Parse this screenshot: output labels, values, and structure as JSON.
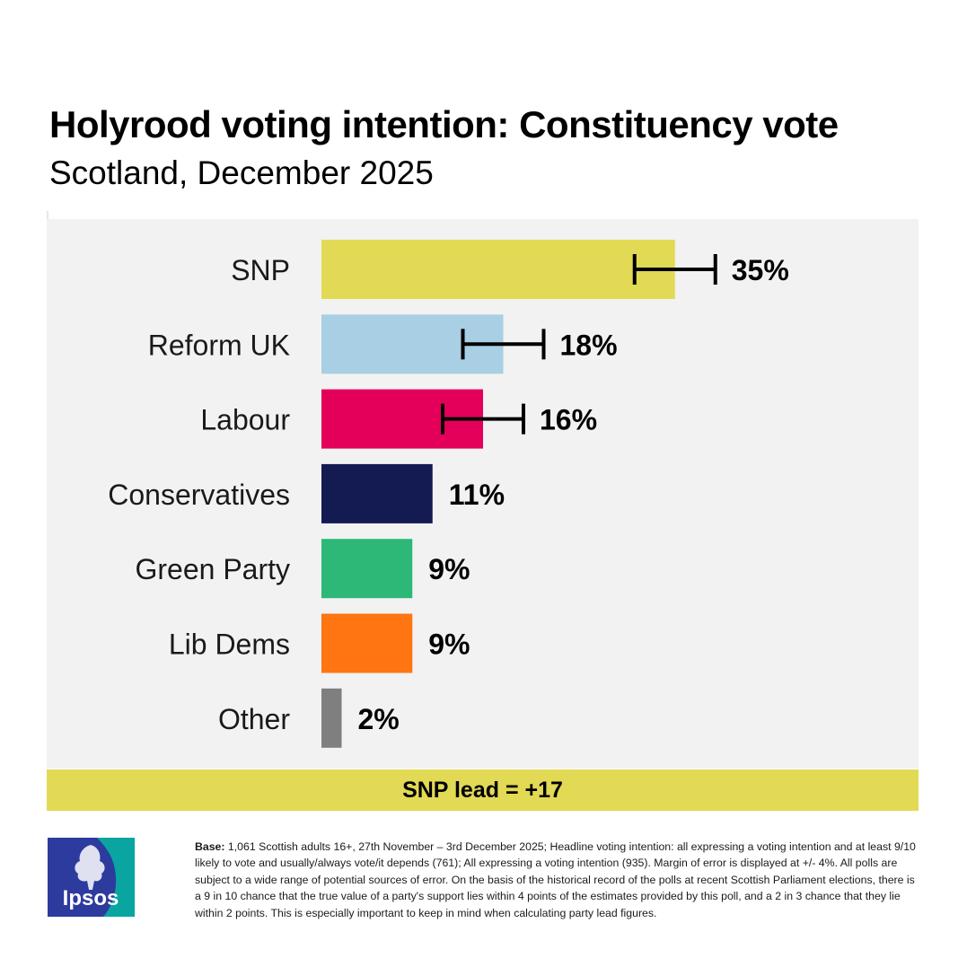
{
  "title": "Holyrood voting intention: Constituency vote",
  "subtitle": "Scotland, December 2025",
  "lead_text": "SNP lead = +17",
  "footnote": {
    "label": "Base:",
    "text": "1,061 Scottish adults 16+, 27th November – 3rd December 2025; Headline voting intention: all expressing a voting intention and at least 9/10 likely to vote and usually/always vote/it depends (761); All expressing a voting intention (935). Margin of error is displayed at +/- 4%. All polls are subject to a wide range of potential sources of error. On the basis of the historical record of the polls at recent Scottish Parliament elections, there is a 9 in 10 chance that the true value of a party's support lies within 4 points of the estimates provided by this poll, and a 2 in 3 chance that they lie within 2 points. This is especially important to keep in mind when calculating party lead figures."
  },
  "logo": {
    "text": "Ipsos",
    "colors": [
      "#2d3a9e",
      "#0aa5a0"
    ]
  },
  "chart_data": {
    "type": "bar",
    "orientation": "horizontal",
    "categories": [
      "SNP",
      "Reform UK",
      "Labour",
      "Conservatives",
      "Green Party",
      "Lib Dems",
      "Other"
    ],
    "values": [
      35,
      18,
      16,
      11,
      9,
      9,
      2
    ],
    "value_labels": [
      "35%",
      "18%",
      "16%",
      "11%",
      "9%",
      "9%",
      "2%"
    ],
    "colors": [
      "#e2d955",
      "#a8cfe3",
      "#e4005a",
      "#141a52",
      "#2db877",
      "#ff7512",
      "#7f7f7f"
    ],
    "error_margin": 4,
    "error_bars_shown": [
      true,
      true,
      true,
      false,
      false,
      false,
      false
    ],
    "xlim": [
      0,
      50
    ],
    "grid": false,
    "xlabel": "",
    "ylabel": ""
  }
}
